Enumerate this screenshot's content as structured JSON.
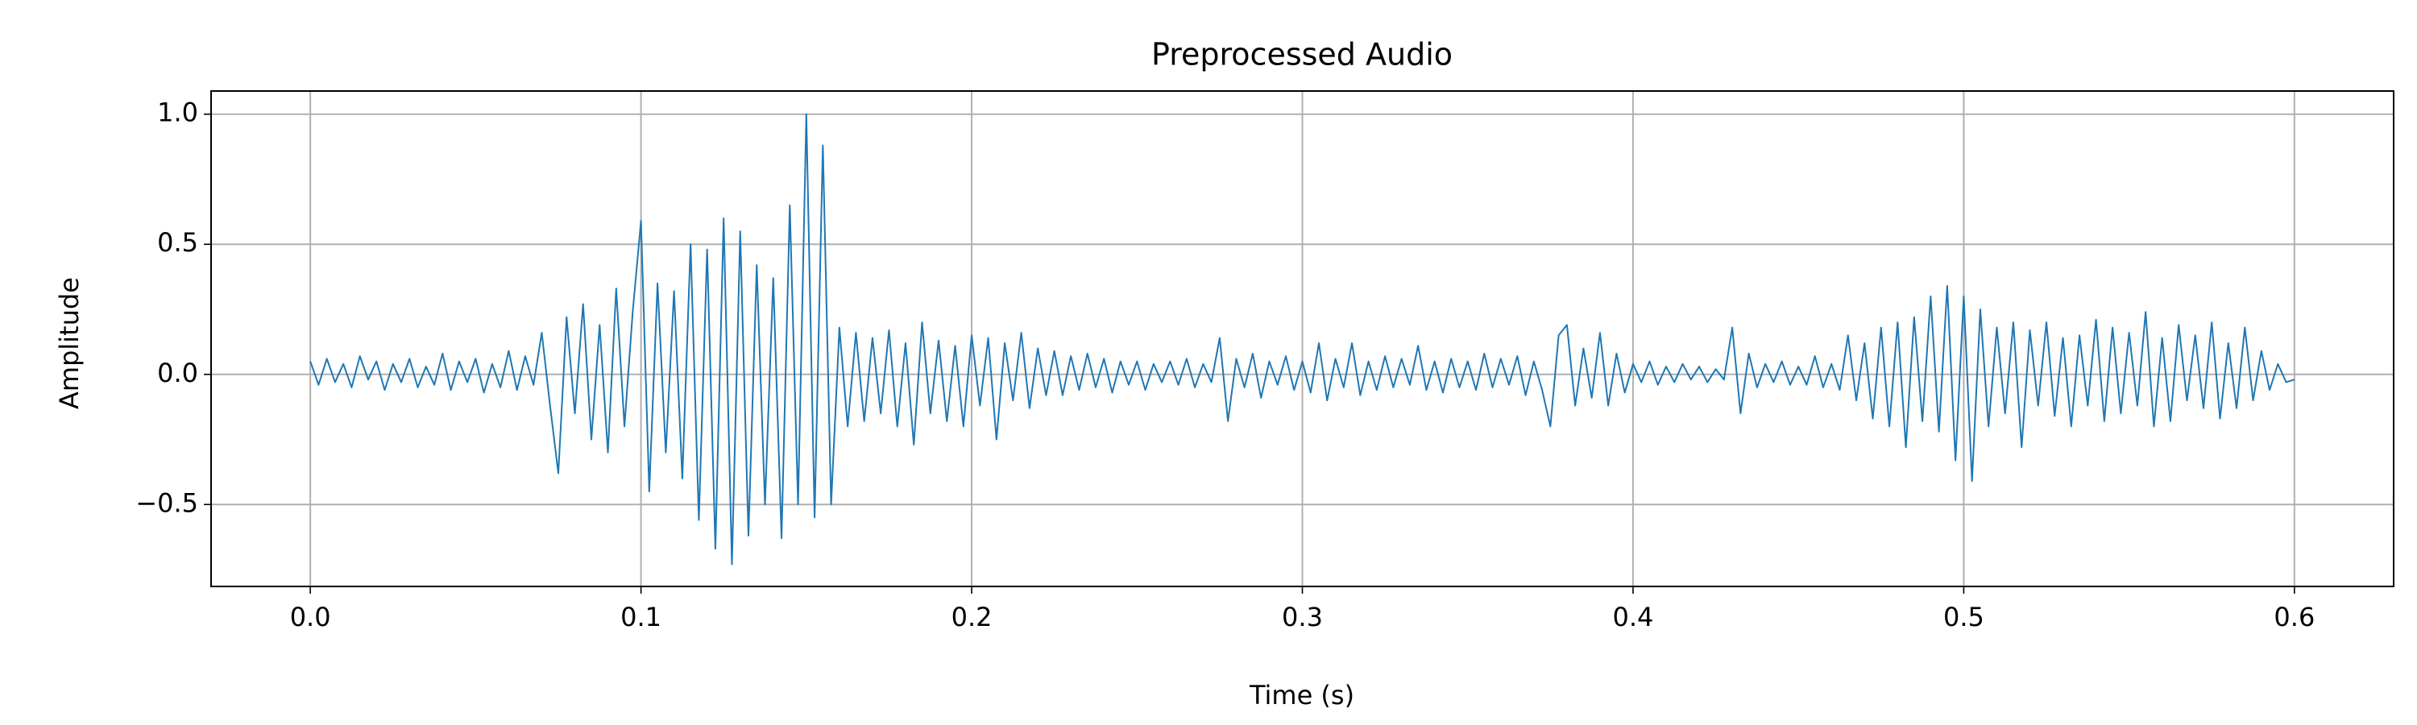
{
  "chart_data": {
    "type": "line",
    "title": "Preprocessed Audio",
    "x_label": "Time (s)",
    "y_label": "Amplitude",
    "grid": true,
    "xlim": [
      -0.03,
      0.63
    ],
    "ylim": [
      -0.815,
      1.089
    ],
    "xticks": [
      {
        "value": 0,
        "label": "0.0"
      },
      0.1,
      0.2,
      0.3,
      0.4,
      0.5,
      0.6
    ],
    "yticks": [
      {
        "value": -0.5,
        "label": "−0.5"
      },
      {
        "value": 0,
        "label": "0.0"
      },
      0.5,
      {
        "value": 1,
        "label": "1.0"
      }
    ],
    "x": [
      0,
      0.0025,
      0.005,
      0.0075,
      0.01,
      0.0125,
      0.015,
      0.0175,
      0.02,
      0.0225,
      0.025,
      0.0275,
      0.03,
      0.0325,
      0.035,
      0.0375,
      0.04,
      0.0425,
      0.045,
      0.0475,
      0.05,
      0.0525,
      0.055,
      0.0575,
      0.06,
      0.0625,
      0.065,
      0.0675,
      0.07,
      0.0725,
      0.075,
      0.0775,
      0.08,
      0.0825,
      0.085,
      0.0875,
      0.09,
      0.0925,
      0.095,
      0.0975,
      0.1,
      0.1025,
      0.105,
      0.1075,
      0.11,
      0.1125,
      0.115,
      0.1175,
      0.12,
      0.1225,
      0.125,
      0.1275,
      0.13,
      0.1325,
      0.135,
      0.1375,
      0.14,
      0.1425,
      0.145,
      0.1475,
      0.15,
      0.1525,
      0.155,
      0.1575,
      0.16,
      0.1625,
      0.165,
      0.1675,
      0.17,
      0.1725,
      0.175,
      0.1775,
      0.18,
      0.1825,
      0.185,
      0.1875,
      0.19,
      0.1925,
      0.195,
      0.1975,
      0.2,
      0.2025,
      0.205,
      0.2075,
      0.21,
      0.2125,
      0.215,
      0.2175,
      0.22,
      0.2225,
      0.225,
      0.2275,
      0.23,
      0.2325,
      0.235,
      0.2375,
      0.24,
      0.2425,
      0.245,
      0.2475,
      0.25,
      0.2525,
      0.255,
      0.2575,
      0.26,
      0.2625,
      0.265,
      0.2675,
      0.27,
      0.2725,
      0.275,
      0.2775,
      0.28,
      0.2825,
      0.285,
      0.2875,
      0.29,
      0.2925,
      0.295,
      0.2975,
      0.3,
      0.3025,
      0.305,
      0.3075,
      0.31,
      0.3125,
      0.315,
      0.3175,
      0.32,
      0.3225,
      0.325,
      0.3275,
      0.33,
      0.3325,
      0.335,
      0.3375,
      0.34,
      0.3425,
      0.345,
      0.3475,
      0.35,
      0.3525,
      0.355,
      0.3575,
      0.36,
      0.3625,
      0.365,
      0.3675,
      0.37,
      0.3725,
      0.375,
      0.3775,
      0.38,
      0.3825,
      0.385,
      0.3875,
      0.39,
      0.3925,
      0.395,
      0.3975,
      0.4,
      0.4025,
      0.405,
      0.4075,
      0.41,
      0.4125,
      0.415,
      0.4175,
      0.42,
      0.4225,
      0.425,
      0.4275,
      0.43,
      0.4325,
      0.435,
      0.4375,
      0.44,
      0.4425,
      0.445,
      0.4475,
      0.45,
      0.4525,
      0.455,
      0.4575,
      0.46,
      0.4625,
      0.465,
      0.4675,
      0.47,
      0.4725,
      0.475,
      0.4775,
      0.48,
      0.4825,
      0.485,
      0.4875,
      0.49,
      0.4925,
      0.495,
      0.4975,
      0.5,
      0.5025,
      0.505,
      0.5075,
      0.51,
      0.5125,
      0.515,
      0.5175,
      0.52,
      0.5225,
      0.525,
      0.5275,
      0.53,
      0.5325,
      0.535,
      0.5375,
      0.54,
      0.5425,
      0.545,
      0.5475,
      0.55,
      0.5525,
      0.555,
      0.5575,
      0.56,
      0.5625,
      0.565,
      0.5675,
      0.57,
      0.5725,
      0.575,
      0.5775,
      0.58,
      0.5825,
      0.585,
      0.5875,
      0.59,
      0.5925,
      0.595,
      0.5975,
      0.6
    ],
    "series": [
      {
        "color": "#1f77b4",
        "values": [
          0.05,
          -0.04,
          0.06,
          -0.03,
          0.04,
          -0.05,
          0.07,
          -0.02,
          0.05,
          -0.06,
          0.04,
          -0.03,
          0.06,
          -0.05,
          0.03,
          -0.04,
          0.08,
          -0.06,
          0.05,
          -0.03,
          0.06,
          -0.07,
          0.04,
          -0.05,
          0.09,
          -0.06,
          0.07,
          -0.04,
          0.16,
          -0.12,
          -0.38,
          0.22,
          -0.15,
          0.27,
          -0.25,
          0.19,
          -0.3,
          0.33,
          -0.2,
          0.24,
          0.59,
          -0.45,
          0.35,
          -0.3,
          0.32,
          -0.4,
          0.5,
          -0.56,
          0.48,
          -0.67,
          0.6,
          -0.73,
          0.55,
          -0.62,
          0.42,
          -0.5,
          0.37,
          -0.63,
          0.65,
          -0.5,
          1.0,
          -0.55,
          0.88,
          -0.5,
          0.18,
          -0.2,
          0.16,
          -0.18,
          0.14,
          -0.15,
          0.17,
          -0.2,
          0.12,
          -0.27,
          0.2,
          -0.15,
          0.13,
          -0.18,
          0.11,
          -0.2,
          0.15,
          -0.12,
          0.14,
          -0.25,
          0.12,
          -0.1,
          0.16,
          -0.13,
          0.1,
          -0.08,
          0.09,
          -0.08,
          0.07,
          -0.06,
          0.08,
          -0.05,
          0.06,
          -0.07,
          0.05,
          -0.04,
          0.05,
          -0.06,
          0.04,
          -0.03,
          0.05,
          -0.04,
          0.06,
          -0.05,
          0.04,
          -0.03,
          0.14,
          -0.18,
          0.06,
          -0.05,
          0.08,
          -0.09,
          0.05,
          -0.04,
          0.07,
          -0.06,
          0.05,
          -0.07,
          0.12,
          -0.1,
          0.06,
          -0.05,
          0.12,
          -0.08,
          0.05,
          -0.06,
          0.07,
          -0.05,
          0.06,
          -0.04,
          0.11,
          -0.06,
          0.05,
          -0.07,
          0.06,
          -0.05,
          0.05,
          -0.06,
          0.08,
          -0.05,
          0.06,
          -0.04,
          0.07,
          -0.08,
          0.05,
          -0.06,
          -0.2,
          0.15,
          0.19,
          -0.12,
          0.1,
          -0.09,
          0.16,
          -0.12,
          0.08,
          -0.07,
          0.04,
          -0.03,
          0.05,
          -0.04,
          0.03,
          -0.03,
          0.04,
          -0.02,
          0.03,
          -0.03,
          0.02,
          -0.02,
          0.18,
          -0.15,
          0.08,
          -0.05,
          0.04,
          -0.03,
          0.05,
          -0.04,
          0.03,
          -0.04,
          0.07,
          -0.05,
          0.04,
          -0.06,
          0.15,
          -0.1,
          0.12,
          -0.17,
          0.18,
          -0.2,
          0.2,
          -0.28,
          0.22,
          -0.18,
          0.3,
          -0.22,
          0.34,
          -0.33,
          0.3,
          -0.41,
          0.25,
          -0.2,
          0.18,
          -0.15,
          0.2,
          -0.28,
          0.17,
          -0.12,
          0.2,
          -0.16,
          0.14,
          -0.2,
          0.15,
          -0.12,
          0.21,
          -0.18,
          0.18,
          -0.15,
          0.16,
          -0.12,
          0.24,
          -0.2,
          0.14,
          -0.18,
          0.19,
          -0.1,
          0.15,
          -0.13,
          0.2,
          -0.17,
          0.12,
          -0.13,
          0.18,
          -0.1,
          0.09,
          -0.06,
          0.04,
          -0.03,
          -0.02
        ]
      }
    ]
  }
}
